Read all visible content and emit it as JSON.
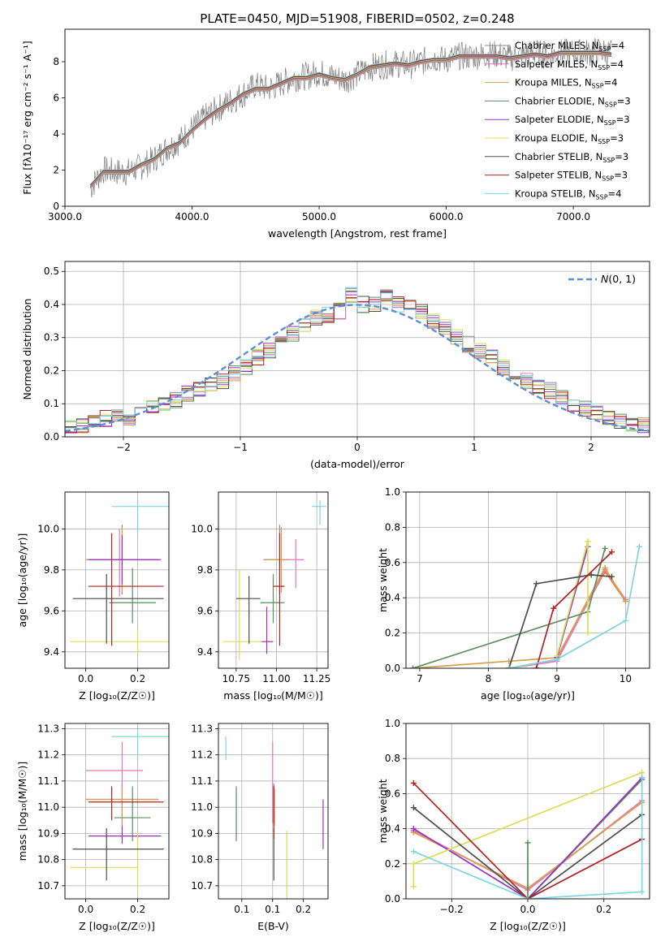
{
  "title": "PLATE=0450, MJD=51908, FIBERID=0502, z=0.248",
  "colors": [
    "#8c8c8c",
    "#e377c2",
    "#d4a24c",
    "#5b8f5b",
    "#9b30c8",
    "#d7e055",
    "#4d4d4d",
    "#b22222",
    "#7fd6de"
  ],
  "accent": "#ee7733",
  "chart_data": [
    {
      "type": "line",
      "xlabel": "wavelength [Angstrom, rest frame]",
      "ylabel": "Flux [fλ10⁻¹⁷ erg cm⁻² s⁻¹ A⁻¹]",
      "xlim": [
        3000,
        7600
      ],
      "ylim": [
        0,
        9.8
      ],
      "xticks": [
        3000,
        4000,
        5000,
        6000,
        7000
      ],
      "yticks": [
        0,
        2,
        4,
        6,
        8
      ],
      "legend": "top-right",
      "grid": false,
      "x": [
        3200,
        3300,
        3400,
        3500,
        3600,
        3700,
        3800,
        3900,
        4000,
        4100,
        4200,
        4300,
        4400,
        4500,
        4600,
        4700,
        4800,
        4900,
        5000,
        5100,
        5200,
        5300,
        5400,
        5500,
        5600,
        5700,
        5800,
        5900,
        6000,
        6100,
        6200,
        6300,
        6400,
        6500,
        6600,
        6700,
        6800,
        6900,
        7000,
        7100,
        7200,
        7300
      ],
      "data_flux": [
        1.0,
        2.0,
        1.9,
        1.9,
        2.2,
        2.6,
        3.2,
        3.6,
        4.3,
        4.9,
        5.4,
        5.8,
        6.2,
        6.7,
        6.5,
        6.8,
        7.1,
        7.2,
        7.4,
        7.2,
        7.0,
        7.3,
        7.7,
        7.8,
        7.9,
        7.8,
        8.0,
        8.2,
        8.1,
        8.3,
        8.3,
        8.4,
        8.4,
        8.2,
        8.4,
        8.5,
        8.3,
        8.5,
        8.5,
        8.5,
        8.6,
        8.5
      ],
      "model_flux": [
        1.1,
        1.9,
        1.9,
        1.9,
        2.3,
        2.6,
        3.2,
        3.5,
        4.2,
        4.8,
        5.3,
        5.7,
        6.2,
        6.5,
        6.5,
        6.8,
        7.1,
        7.1,
        7.3,
        7.1,
        7.0,
        7.3,
        7.7,
        7.8,
        7.9,
        7.8,
        8.0,
        8.1,
        8.1,
        8.3,
        8.3,
        8.3,
        8.3,
        8.2,
        8.3,
        8.4,
        8.3,
        8.5,
        8.5,
        8.5,
        8.5,
        8.4
      ],
      "series": [
        {
          "name": "Chabrier MILES, N",
          "sub": "SSP",
          "suffix": "=4"
        },
        {
          "name": "Salpeter MILES, N",
          "sub": "SSP",
          "suffix": "=4"
        },
        {
          "name": "Kroupa MILES, N",
          "sub": "SSP",
          "suffix": "=4"
        },
        {
          "name": "Chabrier ELODIE, N",
          "sub": "SSP",
          "suffix": "=3"
        },
        {
          "name": "Salpeter ELODIE, N",
          "sub": "SSP",
          "suffix": "=3"
        },
        {
          "name": "Kroupa ELODIE, N",
          "sub": "SSP",
          "suffix": "=3"
        },
        {
          "name": "Chabrier STELIB, N",
          "sub": "SSP",
          "suffix": "=3"
        },
        {
          "name": "Salpeter STELIB, N",
          "sub": "SSP",
          "suffix": "=3"
        },
        {
          "name": "Kroupa STELIB, N",
          "sub": "SSP",
          "suffix": "=4"
        }
      ]
    },
    {
      "type": "bar",
      "xlabel": "(data-model)/error",
      "ylabel": "Normed distribution",
      "xlim": [
        -2.5,
        2.5
      ],
      "ylim": [
        0,
        0.53
      ],
      "xticks": [
        -2,
        -1,
        0,
        1,
        2
      ],
      "yticks": [
        0.0,
        0.1,
        0.2,
        0.3,
        0.4,
        0.5
      ],
      "grid": true,
      "legend": "top-right",
      "legend_label": "𝒩(0, 1)",
      "bin_edges": [
        -2.5,
        -2.4,
        -2.3,
        -2.2,
        -2.1,
        -2.0,
        -1.9,
        -1.8,
        -1.7,
        -1.6,
        -1.5,
        -1.4,
        -1.3,
        -1.2,
        -1.1,
        -1.0,
        -0.9,
        -0.8,
        -0.7,
        -0.6,
        -0.5,
        -0.4,
        -0.3,
        -0.2,
        -0.1,
        0.0,
        0.1,
        0.2,
        0.3,
        0.4,
        0.5,
        0.6,
        0.7,
        0.8,
        0.9,
        1.0,
        1.1,
        1.2,
        1.3,
        1.4,
        1.5,
        1.6,
        1.7,
        1.8,
        1.9,
        2.0,
        2.1,
        2.2,
        2.3,
        2.4,
        2.5
      ],
      "hist_base": [
        0.03,
        0.035,
        0.045,
        0.055,
        0.065,
        0.06,
        0.075,
        0.09,
        0.1,
        0.11,
        0.13,
        0.14,
        0.155,
        0.17,
        0.19,
        0.21,
        0.24,
        0.26,
        0.29,
        0.31,
        0.34,
        0.36,
        0.37,
        0.38,
        0.43,
        0.4,
        0.4,
        0.42,
        0.4,
        0.39,
        0.38,
        0.35,
        0.33,
        0.3,
        0.28,
        0.26,
        0.24,
        0.21,
        0.19,
        0.17,
        0.15,
        0.14,
        0.12,
        0.1,
        0.085,
        0.07,
        0.06,
        0.05,
        0.04,
        0.035
      ],
      "normal_curve": "N(0,1)"
    },
    {
      "type": "scatter",
      "xlabel": "Z [log₁₀(Z/Z☉)]",
      "ylabel": "age  [log₁₀(age/yr)]",
      "xlim": [
        -0.08,
        0.32
      ],
      "ylim": [
        9.32,
        10.18
      ],
      "xticks": [
        0.0,
        0.2
      ],
      "yticks": [
        9.4,
        9.6,
        9.8,
        10.0
      ],
      "grid": true,
      "points": [
        {
          "x": 0.14,
          "y": 9.85,
          "xerr": [
            0.14,
            0.14
          ],
          "yerr": [
            0.17,
            0.17
          ]
        },
        {
          "x": 0.13,
          "y": 9.85,
          "xerr": [
            0.13,
            0.15
          ],
          "yerr": [
            0.18,
            0.15
          ]
        },
        {
          "x": 0.14,
          "y": 9.85,
          "xerr": [
            0.14,
            0.14
          ],
          "yerr": [
            0.16,
            0.16
          ]
        },
        {
          "x": 0.18,
          "y": 9.64,
          "xerr": [
            0.09,
            0.09
          ],
          "yerr": [
            0.1,
            0.17
          ]
        },
        {
          "x": 0.14,
          "y": 9.85,
          "xerr": [
            0.13,
            0.15
          ],
          "yerr": [
            0.12,
            0.12
          ]
        },
        {
          "x": 0.2,
          "y": 9.45,
          "xerr": [
            0.26,
            0.26
          ],
          "yerr": [
            0.06,
            0.06
          ]
        },
        {
          "x": 0.08,
          "y": 9.66,
          "xerr": [
            0.13,
            0.22
          ],
          "yerr": [
            0.22,
            0.12
          ]
        },
        {
          "x": 0.1,
          "y": 9.72,
          "xerr": [
            0.09,
            0.2
          ],
          "yerr": [
            0.29,
            0.26
          ]
        },
        {
          "x": 0.2,
          "y": 10.11,
          "xerr": [
            0.1,
            0.12
          ],
          "yerr": [
            0.13,
            0.03
          ]
        }
      ]
    },
    {
      "type": "scatter",
      "xlabel": "mass [log₁₀(M/M☉)]",
      "ylabel": "",
      "xlim": [
        10.64,
        11.32
      ],
      "ylim": [
        9.32,
        10.18
      ],
      "xticks": [
        10.75,
        11.0,
        11.25
      ],
      "yticks": [
        9.4,
        9.6,
        9.8,
        10.0
      ],
      "grid": true,
      "points": [
        {
          "x": 11.02,
          "y": 9.85,
          "xerr": [
            0.1,
            0.06
          ],
          "yerr": [
            0.17,
            0.17
          ]
        },
        {
          "x": 11.12,
          "y": 9.85,
          "xerr": [
            0.12,
            0.05
          ],
          "yerr": [
            0.14,
            0.1
          ]
        },
        {
          "x": 11.03,
          "y": 9.85,
          "xerr": [
            0.1,
            0.04
          ],
          "yerr": [
            0.16,
            0.16
          ]
        },
        {
          "x": 10.98,
          "y": 9.64,
          "xerr": [
            0.08,
            0.07
          ],
          "yerr": [
            0.1,
            0.14
          ]
        },
        {
          "x": 10.94,
          "y": 9.45,
          "xerr": [
            0.04,
            0.04
          ],
          "yerr": [
            0.06,
            0.17
          ]
        },
        {
          "x": 10.77,
          "y": 9.45,
          "xerr": [
            0.1,
            0.14
          ],
          "yerr": [
            0.09,
            0.35
          ]
        },
        {
          "x": 10.83,
          "y": 9.66,
          "xerr": [
            0.08,
            0.07
          ],
          "yerr": [
            0.22,
            0.11
          ]
        },
        {
          "x": 11.02,
          "y": 9.72,
          "xerr": [
            0.04,
            0.03
          ],
          "yerr": [
            0.29,
            0.26
          ]
        },
        {
          "x": 11.27,
          "y": 10.11,
          "xerr": [
            0.05,
            0.04
          ],
          "yerr": [
            0.09,
            0.03
          ]
        }
      ]
    },
    {
      "type": "line",
      "xlabel": "age  [log₁₀(age/yr)]",
      "ylabel": "mass weight",
      "xlim": [
        6.8,
        10.35
      ],
      "ylim": [
        0,
        1
      ],
      "xticks": [
        7,
        8,
        9,
        10
      ],
      "yticks": [
        0.0,
        0.2,
        0.4,
        0.6,
        0.8,
        1.0
      ],
      "grid": true,
      "series": [
        {
          "x": [
            8.3,
            9.0,
            9.7,
            10.0
          ],
          "y": [
            0.0,
            0.05,
            0.55,
            0.38
          ]
        },
        {
          "x": [
            8.3,
            9.0,
            9.7,
            10.0
          ],
          "y": [
            0.0,
            0.04,
            0.56,
            0.39
          ]
        },
        {
          "x": [
            6.9,
            8.3,
            9.0,
            9.7,
            10.0
          ],
          "y": [
            0.0,
            0.04,
            0.06,
            0.57,
            0.38
          ]
        },
        {
          "x": [
            6.9,
            9.45,
            9.7
          ],
          "y": [
            0.0,
            0.32,
            0.68
          ]
        },
        {
          "x": [
            9.0,
            9.45
          ],
          "y": [
            0.06,
            0.69
          ]
        },
        {
          "x": [
            9.0,
            9.45,
            9.45
          ],
          "y": [
            0.07,
            0.72,
            0.2
          ]
        },
        {
          "x": [
            8.3,
            8.7,
            9.5,
            9.8
          ],
          "y": [
            0.0,
            0.48,
            0.53,
            0.52
          ]
        },
        {
          "x": [
            8.7,
            8.95,
            9.8
          ],
          "y": [
            0.0,
            0.34,
            0.66
          ]
        },
        {
          "x": [
            8.3,
            9.0,
            10.0,
            10.2
          ],
          "y": [
            0.0,
            0.05,
            0.27,
            0.69
          ]
        }
      ]
    },
    {
      "type": "scatter",
      "xlabel": "Z [log₁₀(Z/Z☉)]",
      "ylabel": "mass [log₁₀(M/M☉)]",
      "xlim": [
        -0.08,
        0.32
      ],
      "ylim": [
        10.65,
        11.32
      ],
      "xticks": [
        0.0,
        0.2
      ],
      "yticks": [
        10.7,
        10.8,
        10.9,
        11.0,
        11.1,
        11.2,
        11.3
      ],
      "grid": true,
      "points": [
        {
          "x": 0.14,
          "y": 11.03,
          "xerr": [
            0.14,
            0.14
          ],
          "yerr": [
            0.1,
            0.06
          ]
        },
        {
          "x": 0.14,
          "y": 11.14,
          "xerr": [
            0.14,
            0.08
          ],
          "yerr": [
            0.2,
            0.11
          ]
        },
        {
          "x": 0.14,
          "y": 11.03,
          "xerr": [
            0.14,
            0.14
          ],
          "yerr": [
            0.1,
            0.04
          ]
        },
        {
          "x": 0.18,
          "y": 10.96,
          "xerr": [
            0.07,
            0.07
          ],
          "yerr": [
            0.09,
            0.12
          ]
        },
        {
          "x": 0.14,
          "y": 10.89,
          "xerr": [
            0.13,
            0.15
          ],
          "yerr": [
            0.03,
            0.04
          ]
        },
        {
          "x": 0.2,
          "y": 10.77,
          "xerr": [
            0.26,
            0.0
          ],
          "yerr": [
            0.1,
            0.14
          ]
        },
        {
          "x": 0.08,
          "y": 10.84,
          "xerr": [
            0.13,
            0.22
          ],
          "yerr": [
            0.12,
            0.08
          ]
        },
        {
          "x": 0.1,
          "y": 11.02,
          "xerr": [
            0.09,
            0.2
          ],
          "yerr": [
            0.07,
            0.06
          ]
        },
        {
          "x": 0.2,
          "y": 11.27,
          "xerr": [
            0.1,
            0.12
          ],
          "yerr": [
            0.09,
            0.03
          ]
        }
      ]
    },
    {
      "type": "scatter",
      "xlabel": "E(B-V)",
      "ylabel": "",
      "xlim": [
        0.062,
        0.24
      ],
      "ylim": [
        10.65,
        11.32
      ],
      "xticks": [
        0.1,
        0.15,
        0.2
      ],
      "yticks": [
        10.7,
        10.8,
        10.9,
        11.0,
        11.1,
        11.2,
        11.3
      ],
      "grid": true,
      "points": [
        {
          "x": 0.152,
          "y": 11.03,
          "xerr": [
            0,
            0
          ],
          "yerr": [
            0.1,
            0.06
          ]
        },
        {
          "x": 0.15,
          "y": 11.14,
          "xerr": [
            0,
            0
          ],
          "yerr": [
            0.2,
            0.11
          ]
        },
        {
          "x": 0.153,
          "y": 11.03,
          "xerr": [
            0,
            0
          ],
          "yerr": [
            0.1,
            0.04
          ]
        },
        {
          "x": 0.091,
          "y": 10.97,
          "xerr": [
            0,
            0
          ],
          "yerr": [
            0.1,
            0.11
          ]
        },
        {
          "x": 0.232,
          "y": 10.93,
          "xerr": [
            0,
            0
          ],
          "yerr": [
            0.09,
            0.1
          ]
        },
        {
          "x": 0.173,
          "y": 10.79,
          "xerr": [
            0,
            0
          ],
          "yerr": [
            0.14,
            0.12
          ]
        },
        {
          "x": 0.152,
          "y": 10.84,
          "xerr": [
            0,
            0
          ],
          "yerr": [
            0.12,
            0.08
          ]
        },
        {
          "x": 0.152,
          "y": 11.02,
          "xerr": [
            0,
            0
          ],
          "yerr": [
            0.14,
            0.06
          ]
        },
        {
          "x": 0.074,
          "y": 11.23,
          "xerr": [
            0,
            0
          ],
          "yerr": [
            0.05,
            0.04
          ]
        }
      ]
    },
    {
      "type": "line",
      "xlabel": "Z [log₁₀(Z/Z☉)]",
      "ylabel": "mass weight",
      "xlim": [
        -0.32,
        0.32
      ],
      "ylim": [
        0,
        1
      ],
      "xticks": [
        -0.2,
        0.0,
        0.2
      ],
      "yticks": [
        0.0,
        0.2,
        0.4,
        0.6,
        0.8,
        1.0
      ],
      "grid": true,
      "series": [
        {
          "x": [
            -0.3,
            0.0,
            0.3
          ],
          "y": [
            0.38,
            0.06,
            0.55
          ]
        },
        {
          "x": [
            -0.3,
            0.0,
            0.3
          ],
          "y": [
            0.39,
            0.05,
            0.56
          ]
        },
        {
          "x": [
            -0.3,
            0.0,
            0.3
          ],
          "y": [
            0.38,
            0.06,
            0.55
          ]
        },
        {
          "x": [
            0.0,
            0.0,
            0.3
          ],
          "y": [
            0.32,
            0.0,
            0.68
          ]
        },
        {
          "x": [
            -0.3,
            0.0,
            0.3
          ],
          "y": [
            0.4,
            0.0,
            0.69
          ]
        },
        {
          "x": [
            -0.3,
            -0.3,
            0.3
          ],
          "y": [
            0.07,
            0.2,
            0.72
          ]
        },
        {
          "x": [
            -0.3,
            0.0,
            0.3
          ],
          "y": [
            0.52,
            0.0,
            0.48
          ]
        },
        {
          "x": [
            -0.3,
            0.0,
            0.3
          ],
          "y": [
            0.66,
            0.0,
            0.34
          ]
        },
        {
          "x": [
            -0.3,
            0.0,
            0.3,
            0.3
          ],
          "y": [
            0.27,
            0.0,
            0.04,
            0.69
          ]
        }
      ]
    }
  ]
}
